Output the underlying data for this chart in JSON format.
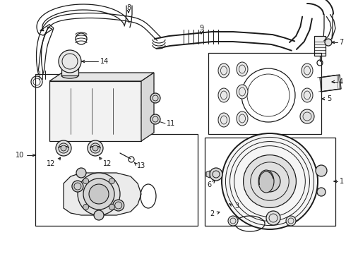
{
  "bg_color": "#ffffff",
  "line_color": "#1a1a1a",
  "fig_width": 4.9,
  "fig_height": 3.6,
  "dpi": 100,
  "label_fs": 7.0
}
